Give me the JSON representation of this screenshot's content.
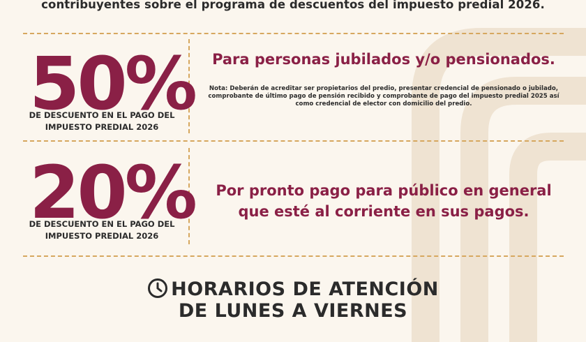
{
  "intro_line": "contribuyentes sobre el programa de descuentos del impuesto predial 2026.",
  "offers": [
    {
      "percent": "50%",
      "subtitle": "DE DESCUENTO EN EL PAGO DEL IMPUESTO PREDIAL 2026",
      "headline": "Para personas jubilados y/o pensionados.",
      "note": "Nota: Deberán de acreditar ser propietarios del predio, presentar credencial de pensionado o jubilado, comprobante de último pago de pensión recibido y comprobante de pago del impuesto predial 2025 así como credencial de elector con domicilio del predio."
    },
    {
      "percent": "20%",
      "subtitle": "DE DESCUENTO EN EL PAGO DEL IMPUESTO PREDIAL 2026",
      "headline": "Por pronto pago para público en general que esté al corriente en sus pagos."
    }
  ],
  "hours": {
    "line1": "HORARIOS DE ATENCIÓN",
    "line2": "DE LUNES A VIERNES",
    "icon": "clock-icon"
  },
  "colors": {
    "accent": "#8a2046",
    "dash": "#d6a75e",
    "background": "#fbf6ee",
    "text": "#2b2b2b"
  }
}
